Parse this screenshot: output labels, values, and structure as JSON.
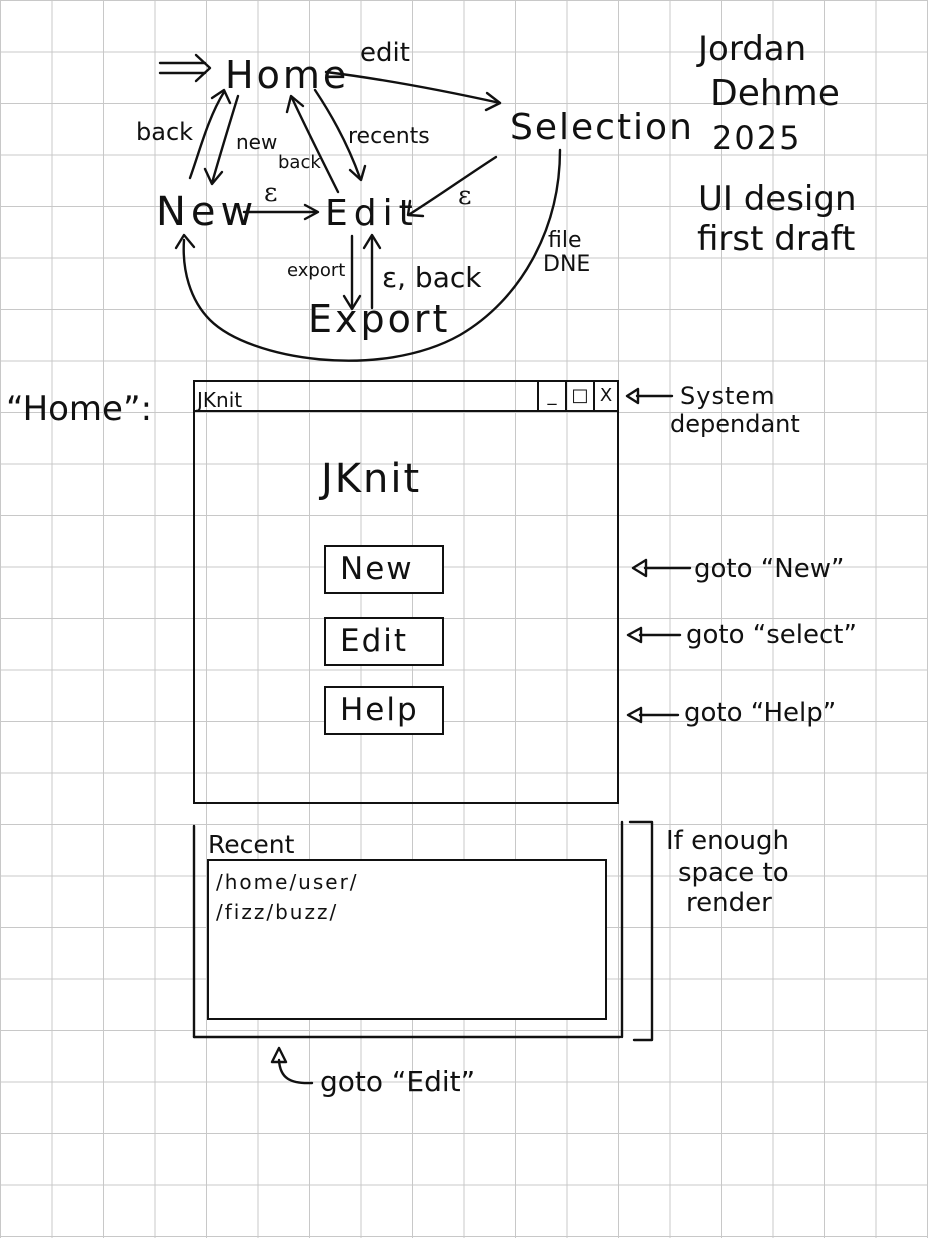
{
  "flow": {
    "entry_arrow": "⟹",
    "states": {
      "home": "Home",
      "selection": "Selection",
      "new": "New",
      "edit": "Edit",
      "export": "Export"
    },
    "edges": {
      "home_to_selection": "edit",
      "new_to_home": "back",
      "home_to_new": "new",
      "edit_to_home": "back",
      "home_to_edit": "recents",
      "new_to_edit": "ε",
      "selection_to_edit": "ε",
      "edit_to_export": "export",
      "export_to_edit": "ε, back",
      "selection_to_new_line1": "file",
      "selection_to_new_line2": "DNE"
    }
  },
  "credits": {
    "name_first": "Jordan",
    "name_last": "Dehme",
    "year": "2025",
    "subtitle_line1": "UI design",
    "subtitle_line2": "first draft"
  },
  "home_screen": {
    "label": "“Home”:",
    "window": {
      "titlebar_text": "JKnit",
      "minimize": "_",
      "maximize": "□",
      "close": "X",
      "app_title": "JKnit",
      "buttons": {
        "new": "New",
        "edit": "Edit",
        "help": "Help"
      }
    },
    "recent": {
      "title": "Recent",
      "items": [
        "/home/user/",
        "/fizz/buzz/"
      ]
    }
  },
  "annotations": {
    "system_line1": "System",
    "system_line2": "dependant",
    "goto_new": "goto “New”",
    "goto_select": "goto “select”",
    "goto_help": "goto “Help”",
    "space_line1": "If enough",
    "space_line2": "space to",
    "space_line3": "render",
    "goto_edit": "goto “Edit”"
  }
}
